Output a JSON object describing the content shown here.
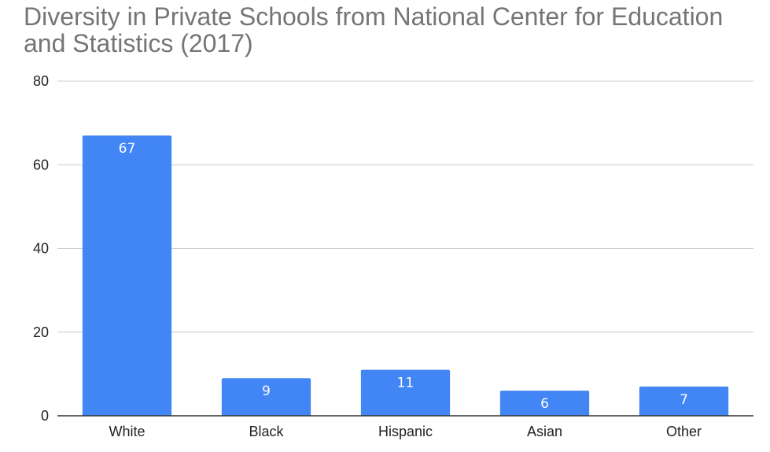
{
  "chart_data": {
    "type": "bar",
    "title": "Diversity in Private Schools from National Center for Education and Statistics (2017)",
    "categories": [
      "White",
      "Black",
      "Hispanic",
      "Asian",
      "Other"
    ],
    "values": [
      67,
      9,
      11,
      6,
      7
    ],
    "data_labels": [
      "67",
      "9",
      "11",
      "6",
      "7"
    ],
    "xlabel": "",
    "ylabel": "",
    "ylim": [
      0,
      80
    ],
    "yticks": [
      "0",
      "20",
      "40",
      "60",
      "80"
    ],
    "grid": true,
    "legend": "none",
    "bar_color": "#4285f4",
    "grid_color": "#cccccc",
    "axis_color": "#333333"
  }
}
